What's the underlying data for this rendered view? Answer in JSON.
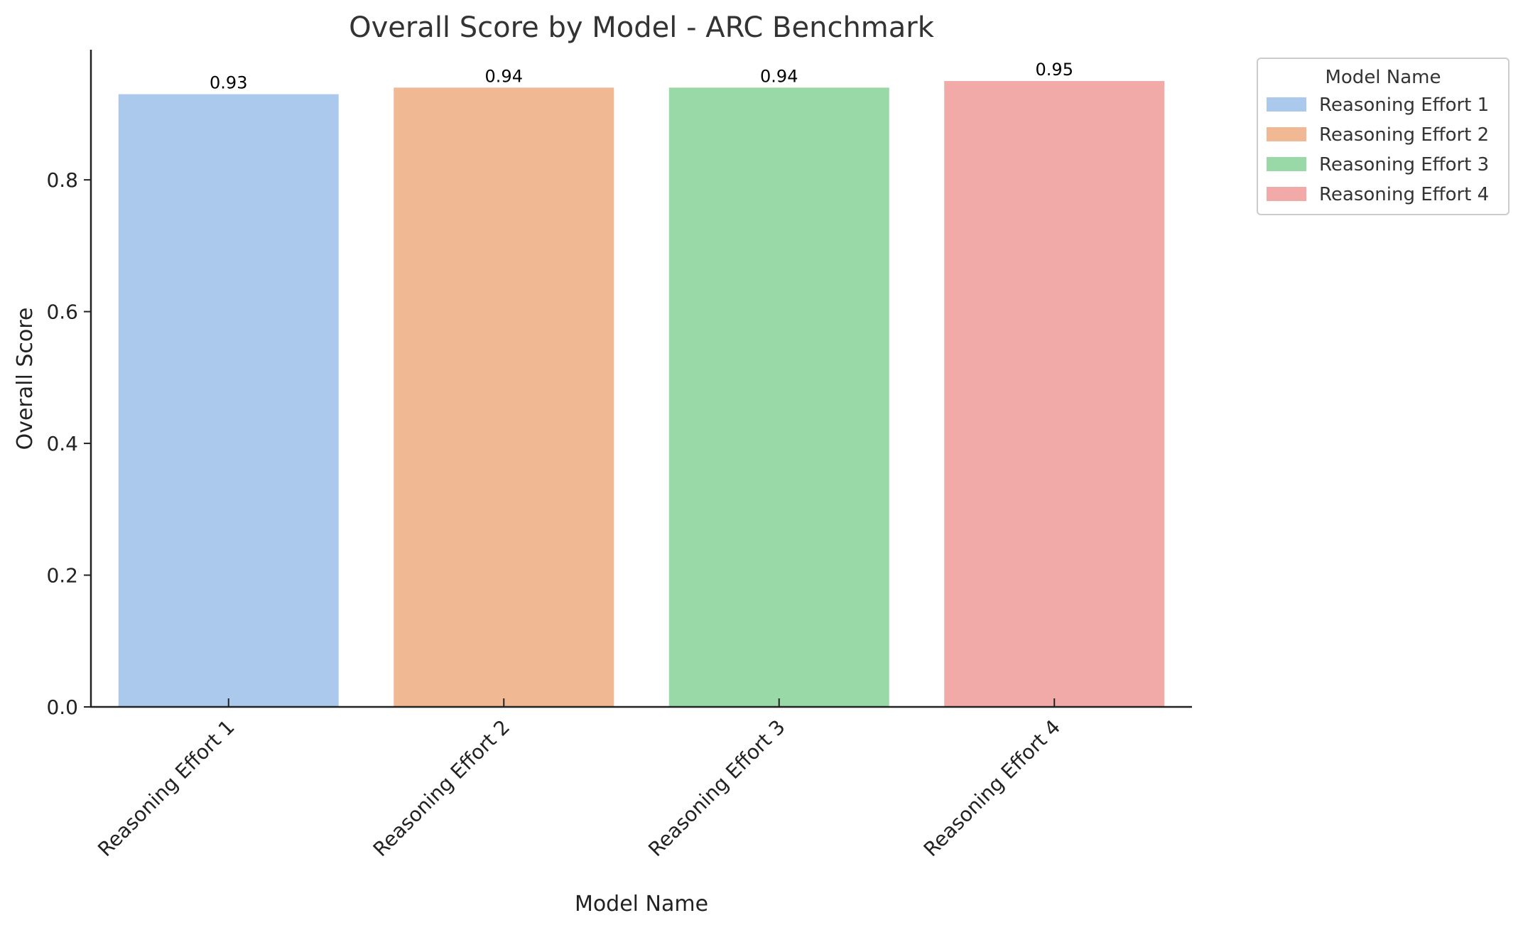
{
  "chart_data": {
    "type": "bar",
    "title": "Overall Score by Model - ARC Benchmark",
    "xlabel": "Model Name",
    "ylabel": "Overall Score",
    "categories": [
      "Reasoning Effort 1",
      "Reasoning Effort 2",
      "Reasoning Effort 3",
      "Reasoning Effort 4"
    ],
    "values": [
      0.93,
      0.94,
      0.94,
      0.95
    ],
    "value_labels": [
      "0.93",
      "0.94",
      "0.94",
      "0.95"
    ],
    "colors": [
      "#abc9ed",
      "#f0b893",
      "#99d9a7",
      "#f2aaa9"
    ],
    "ylim": [
      0,
      0.9975
    ],
    "yticks": [
      0.0,
      0.2,
      0.4,
      0.6,
      0.8
    ],
    "ytick_labels": [
      "0.0",
      "0.2",
      "0.4",
      "0.6",
      "0.8"
    ],
    "grid": false,
    "legend": {
      "title": "Model Name",
      "position": "outside-top-right",
      "entries": [
        "Reasoning Effort 1",
        "Reasoning Effort 2",
        "Reasoning Effort 3",
        "Reasoning Effort 4"
      ]
    }
  }
}
